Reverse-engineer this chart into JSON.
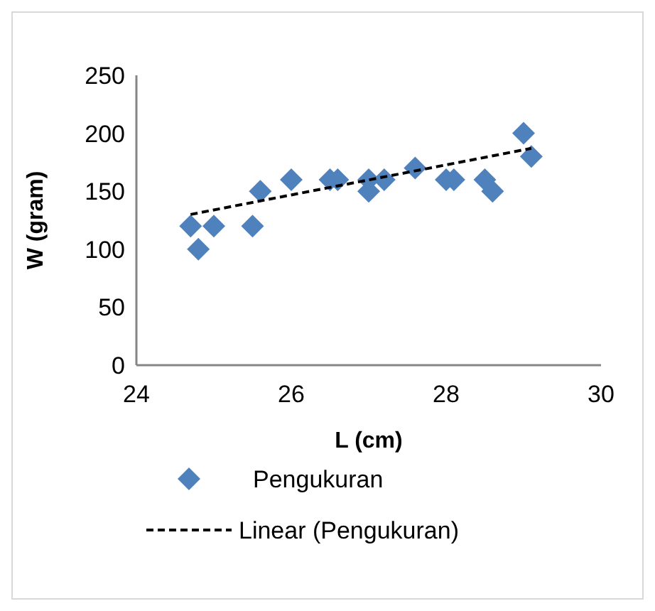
{
  "chart_data": {
    "type": "scatter",
    "xlabel": "L (cm)",
    "ylabel": "W (gram)",
    "xlim": [
      24,
      30
    ],
    "ylim": [
      0,
      250
    ],
    "xticks": [
      24,
      26,
      28,
      30
    ],
    "yticks": [
      0,
      50,
      100,
      150,
      200,
      250
    ],
    "grid": false,
    "legend": "bottom",
    "series": [
      {
        "name": "Pengukuran",
        "marker": "diamond",
        "color": "#4f81bd",
        "x": [
          24.7,
          24.8,
          25.0,
          25.5,
          25.6,
          26.0,
          26.5,
          26.6,
          27.0,
          27.0,
          27.2,
          27.6,
          28.0,
          28.1,
          28.5,
          28.6,
          29.0,
          29.1
        ],
        "values": [
          120,
          100,
          120,
          120,
          150,
          160,
          160,
          160,
          160,
          150,
          160,
          170,
          160,
          160,
          160,
          150,
          200,
          180
        ]
      },
      {
        "name": "Linear (Pengukuran)",
        "type": "line",
        "line_style": "dashed",
        "color": "#000000",
        "x": [
          24.7,
          29.1
        ],
        "values": [
          130,
          187
        ]
      }
    ]
  }
}
